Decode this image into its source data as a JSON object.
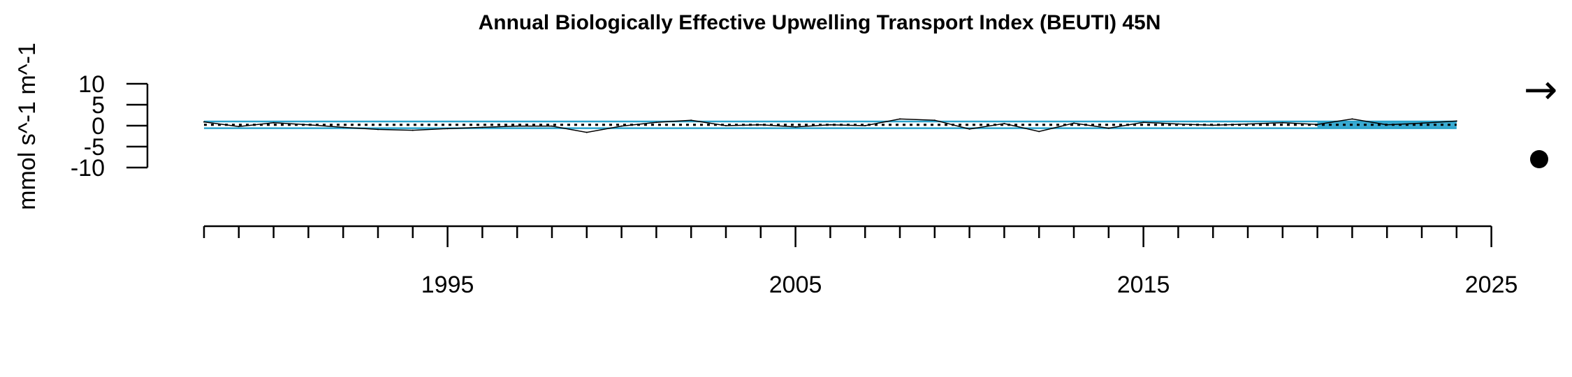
{
  "chart_data": {
    "type": "line",
    "title": "Annual Biologically Effective Upwelling Transport Index (BEUTI) 45N",
    "xlabel": "",
    "ylabel": "mmol s^-1 m^-1",
    "xlim": [
      1988,
      2025
    ],
    "ylim": [
      -10,
      10
    ],
    "x_ticks_major": [
      1995,
      2005,
      2015,
      2025
    ],
    "x_tick_labels": [
      "1995",
      "2005",
      "2015",
      "2025"
    ],
    "y_ticks": [
      10,
      5,
      0,
      -5,
      -10
    ],
    "y_tick_labels": [
      "10",
      "5",
      "0",
      "-5",
      "-10"
    ],
    "grid": false,
    "series": [
      {
        "x": [
          1988,
          1989,
          1990,
          1991,
          1992,
          1993,
          1994,
          1995,
          1996,
          1997,
          1998,
          1999,
          2000,
          2001,
          2002,
          2003,
          2004,
          2005,
          2006,
          2007,
          2008,
          2009,
          2010,
          2011,
          2012,
          2013,
          2014,
          2015,
          2016,
          2017,
          2018,
          2019,
          2020,
          2021,
          2022,
          2023,
          2024
        ],
        "values": [
          0.9,
          -0.2,
          0.7,
          0.2,
          -0.4,
          -0.9,
          -1.1,
          -0.7,
          -0.4,
          -0.1,
          -0.1,
          -1.6,
          -0.1,
          0.8,
          1.3,
          0.0,
          0.2,
          -0.3,
          0.2,
          0.0,
          1.6,
          1.3,
          -0.8,
          0.5,
          -1.4,
          0.6,
          -0.6,
          0.8,
          0.4,
          0.1,
          0.4,
          0.7,
          0.3,
          1.6,
          0.2,
          0.6,
          1.1
        ],
        "color": "#000000"
      }
    ],
    "mean_line": 0.2,
    "sd_band": [
      -0.6,
      1.0
    ],
    "highlight_period": [
      2020,
      2024
    ],
    "colors": {
      "band": "#2aa3cc",
      "highlight": "#3aabd2",
      "line": "#000000"
    },
    "trend_symbols": [
      "→",
      "●"
    ]
  }
}
